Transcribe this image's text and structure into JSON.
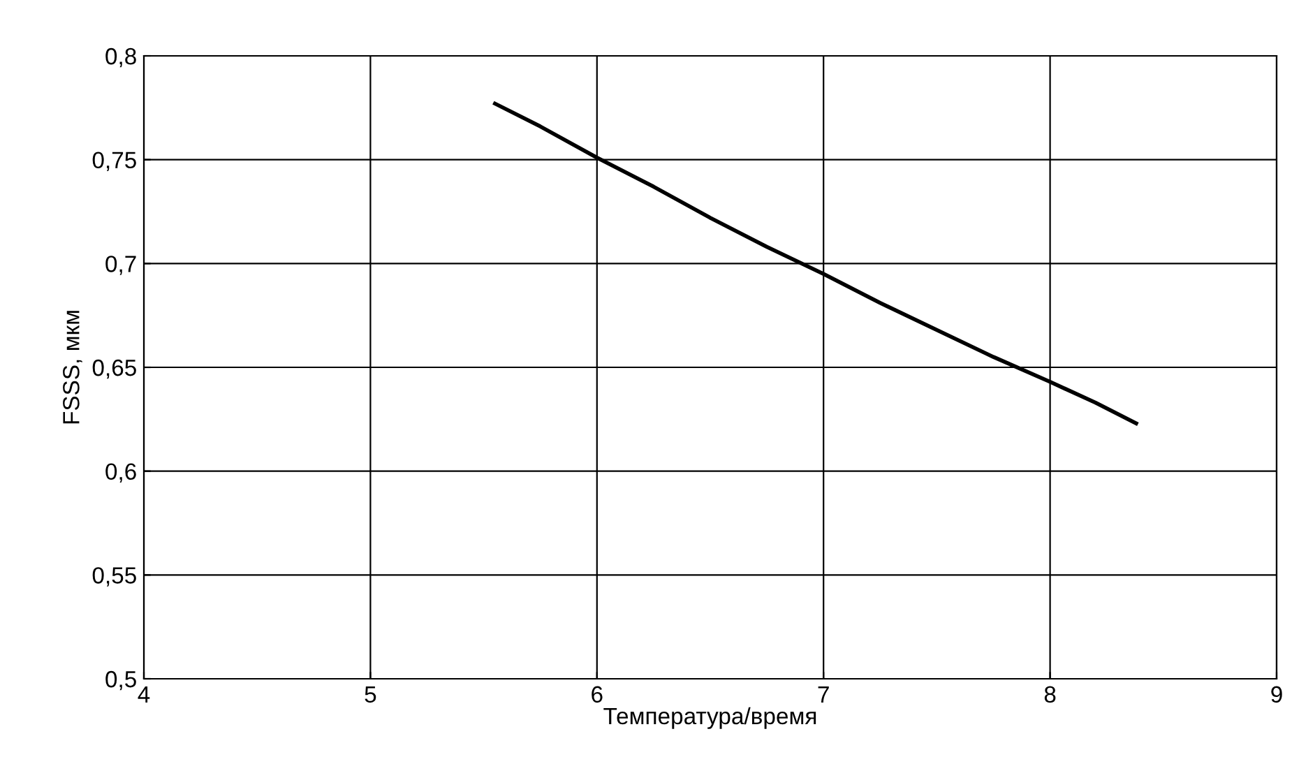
{
  "chart_data": {
    "type": "line",
    "xlabel": "Температура/время",
    "ylabel": "FSSS, мкм",
    "x": [
      5.55,
      5.75,
      6.0,
      6.25,
      6.5,
      6.75,
      7.0,
      7.25,
      7.5,
      7.75,
      8.0,
      8.2,
      8.38
    ],
    "series": [
      {
        "color": "#000000",
        "values": [
          0.777,
          0.766,
          0.751,
          0.737,
          0.722,
          0.708,
          0.695,
          0.681,
          0.668,
          0.655,
          0.643,
          0.633,
          0.623
        ]
      }
    ],
    "xlim": [
      4,
      9
    ],
    "xticks": [
      4,
      5,
      6,
      7,
      8,
      9
    ],
    "ylim": [
      0.5,
      0.8
    ],
    "yticks": [
      {
        "value": 0.5,
        "label": "0,5"
      },
      {
        "value": 0.55,
        "label": "0,55"
      },
      {
        "value": 0.6,
        "label": "0,6"
      },
      {
        "value": 0.65,
        "label": "0,65"
      },
      {
        "value": 0.7,
        "label": "0,7"
      },
      {
        "value": 0.75,
        "label": "0,75"
      },
      {
        "value": 0.8,
        "label": "0,8"
      }
    ],
    "grid": true,
    "marker": "none",
    "line_style": "solid"
  }
}
